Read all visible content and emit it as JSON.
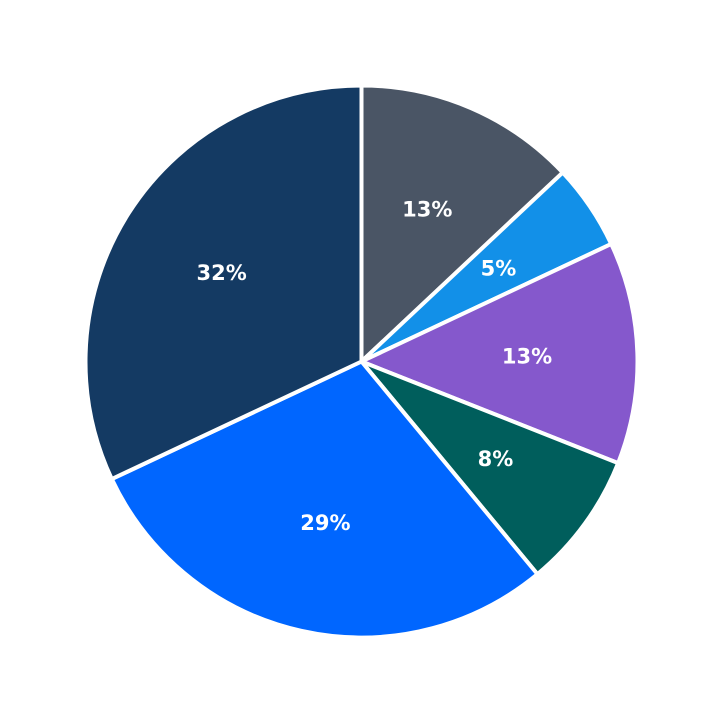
{
  "chart_data": {
    "type": "pie",
    "title": "",
    "start_angle_deg": 90,
    "direction": "clockwise",
    "slices": [
      {
        "value": 13,
        "label": "13%",
        "color": "#4a5565"
      },
      {
        "value": 5,
        "label": "5%",
        "color": "#1290e8"
      },
      {
        "value": 13,
        "label": "13%",
        "color": "#8558cc"
      },
      {
        "value": 8,
        "label": "8%",
        "color": "#005e5c"
      },
      {
        "value": 29,
        "label": "29%",
        "color": "#0066ff"
      },
      {
        "value": 32,
        "label": "32%",
        "color": "#143a63"
      }
    ]
  }
}
